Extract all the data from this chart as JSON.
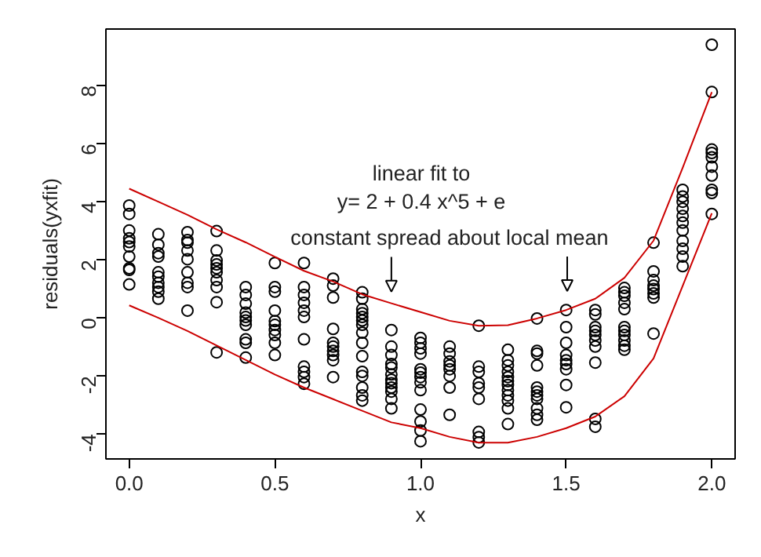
{
  "chart_data": {
    "type": "scatter",
    "xlabel": "x",
    "ylabel": "residuals(yxfit)",
    "xlim": [
      -0.08,
      2.08
    ],
    "ylim": [
      -4.86,
      9.95
    ],
    "xticks": [
      {
        "value": 0,
        "label": "0.0"
      },
      {
        "value": 0.5,
        "label": "0.5"
      },
      {
        "value": 1,
        "label": "1.0"
      },
      {
        "value": 1.5,
        "label": "1.5"
      },
      {
        "value": 2,
        "label": "2.0"
      }
    ],
    "yticks": [
      -4,
      -2,
      0,
      2,
      4,
      6,
      8
    ],
    "grid": false,
    "annotations": [
      "linear fit to",
      "y= 2 + 0.4 x^5 + e",
      {
        "text": "constant spread about local mean",
        "x": 0.9,
        "y": 0.5
      }
    ],
    "series": [
      {
        "marker": "circle",
        "color": "#000000",
        "x": [
          0,
          0,
          0,
          0,
          0,
          0,
          0,
          0,
          0,
          0,
          0.1,
          0.1,
          0.1,
          0.1,
          0.1,
          0.1,
          0.1,
          0.1,
          0.1,
          0.1,
          0.2,
          0.2,
          0.2,
          0.2,
          0.2,
          0.2,
          0.2,
          0.2,
          0.2,
          0.3,
          0.3,
          0.3,
          0.3,
          0.3,
          0.3,
          0.3,
          0.3,
          0.3,
          0.3,
          0.4,
          0.4,
          0.4,
          0.4,
          0.4,
          0.4,
          0.4,
          0.4,
          0.4,
          0.4,
          0.5,
          0.5,
          0.5,
          0.5,
          0.5,
          0.5,
          0.5,
          0.5,
          0.5,
          0.5,
          0.6,
          0.6,
          0.6,
          0.6,
          0.6,
          0.6,
          0.6,
          0.6,
          0.6,
          0.6,
          0.6,
          0.7,
          0.7,
          0.7,
          0.7,
          0.7,
          0.7,
          0.7,
          0.7,
          0.7,
          0.7,
          0.8,
          0.8,
          0.8,
          0.8,
          0.8,
          0.8,
          0.8,
          0.8,
          0.8,
          0.8,
          0.8,
          0.8,
          0.8,
          0.8,
          0.8,
          0.9,
          0.9,
          0.9,
          0.9,
          0.9,
          0.9,
          0.9,
          0.9,
          0.9,
          0.9,
          0.9,
          0.9,
          1.0,
          1.0,
          1.0,
          1.0,
          1.0,
          1.0,
          1.0,
          1.0,
          1.0,
          1.0,
          1.0,
          1.0,
          1.0,
          1.1,
          1.1,
          1.1,
          1.1,
          1.1,
          1.1,
          1.1,
          1.1,
          1.2,
          1.2,
          1.2,
          1.2,
          1.2,
          1.2,
          1.2,
          1.2,
          1.2,
          1.3,
          1.3,
          1.3,
          1.3,
          1.3,
          1.3,
          1.3,
          1.3,
          1.3,
          1.3,
          1.3,
          1.3,
          1.4,
          1.4,
          1.4,
          1.4,
          1.4,
          1.4,
          1.4,
          1.4,
          1.4,
          1.4,
          1.4,
          1.5,
          1.5,
          1.5,
          1.5,
          1.5,
          1.5,
          1.5,
          1.5,
          1.5,
          1.6,
          1.6,
          1.6,
          1.6,
          1.6,
          1.6,
          1.6,
          1.6,
          1.6,
          1.6,
          1.7,
          1.7,
          1.7,
          1.7,
          1.7,
          1.7,
          1.7,
          1.7,
          1.7,
          1.7,
          1.7,
          1.8,
          1.8,
          1.8,
          1.8,
          1.8,
          1.8,
          1.8,
          1.8,
          1.9,
          1.9,
          1.9,
          1.9,
          1.9,
          1.9,
          1.9,
          1.9,
          1.9,
          1.9,
          1.9,
          2.0,
          2.0,
          2.0,
          2.0,
          2.0,
          2.0,
          2.0,
          2.0,
          2.0,
          2.0
        ],
        "values": [
          3.87,
          3.58,
          3.01,
          2.74,
          2.61,
          2.46,
          2.11,
          1.71,
          1.65,
          1.15,
          2.88,
          2.52,
          2.23,
          2.11,
          1.57,
          1.42,
          1.21,
          1.06,
          0.9,
          0.66,
          2.95,
          2.68,
          2.59,
          2.32,
          2.02,
          1.57,
          1.21,
          1.06,
          0.25,
          2.99,
          2.32,
          1.98,
          1.84,
          1.71,
          1.57,
          1.3,
          1.06,
          0.54,
          -1.19,
          1.06,
          0.79,
          0.49,
          0.18,
          0.03,
          -0.09,
          -0.24,
          -0.74,
          -0.86,
          -1.37,
          1.89,
          1.06,
          0.9,
          0.25,
          -0.11,
          -0.24,
          -0.42,
          -0.59,
          -0.86,
          -1.28,
          1.89,
          1.06,
          0.79,
          0.52,
          0.25,
          0.03,
          -0.74,
          -1.68,
          -1.86,
          -2.04,
          -2.27,
          1.35,
          1.11,
          0.7,
          -0.38,
          -0.86,
          -0.99,
          -1.14,
          -1.28,
          -1.46,
          -2.04,
          0.88,
          0.66,
          0.3,
          0.16,
          0.03,
          -0.09,
          -0.24,
          -0.51,
          -0.86,
          -1.32,
          -1.86,
          -2.0,
          -2.4,
          -2.67,
          -2.85,
          -0.42,
          -0.99,
          -1.28,
          -1.59,
          -1.71,
          -1.95,
          -2.13,
          -2.25,
          -2.4,
          -2.54,
          -2.79,
          -3.12,
          -0.69,
          -0.86,
          -1.05,
          -1.23,
          -1.77,
          -1.89,
          -2.04,
          -2.22,
          -2.49,
          -3.16,
          -3.57,
          -3.88,
          -4.25,
          -0.99,
          -1.23,
          -1.5,
          -1.64,
          -1.77,
          -2.0,
          -2.4,
          -3.34,
          -0.27,
          -1.68,
          -1.86,
          -2.25,
          -2.4,
          -2.79,
          -3.93,
          -4.11,
          -4.29,
          -1.1,
          -1.46,
          -1.64,
          -1.86,
          -2.04,
          -2.18,
          -2.31,
          -2.49,
          -2.67,
          -2.85,
          -3.12,
          -3.66,
          -0.02,
          -1.14,
          -1.23,
          -1.64,
          -2.4,
          -2.54,
          -2.67,
          -2.79,
          -3.12,
          -3.34,
          -3.51,
          0.27,
          -0.32,
          -0.86,
          -1.28,
          -1.46,
          -1.59,
          -1.77,
          -2.31,
          -3.08,
          0.27,
          0.12,
          -0.32,
          -0.45,
          -0.59,
          -0.78,
          -0.99,
          -1.54,
          -3.48,
          -3.75,
          1.03,
          0.88,
          0.76,
          0.52,
          0.3,
          -0.32,
          -0.45,
          -0.59,
          -0.78,
          -0.96,
          -1.1,
          2.59,
          1.6,
          1.3,
          1.11,
          0.99,
          0.84,
          0.7,
          -0.54,
          4.41,
          4.18,
          4.0,
          3.76,
          3.51,
          3.28,
          3.01,
          2.65,
          2.38,
          2.11,
          1.78,
          9.41,
          7.78,
          5.8,
          5.68,
          5.53,
          5.21,
          4.9,
          4.41,
          4.3,
          3.58
        ]
      },
      {
        "type": "line",
        "marker": "none",
        "color": "#cc0000",
        "x": [
          0,
          0.1,
          0.2,
          0.3,
          0.4,
          0.5,
          0.6,
          0.7,
          0.8,
          0.9,
          1.0,
          1.1,
          1.2,
          1.3,
          1.4,
          1.5,
          1.6,
          1.7,
          1.8,
          1.9,
          2.0
        ],
        "values": [
          4.45,
          4.0,
          3.55,
          3.05,
          2.6,
          2.1,
          1.62,
          1.25,
          0.81,
          0.5,
          0.2,
          -0.1,
          -0.27,
          -0.25,
          -0.02,
          0.27,
          0.66,
          1.38,
          2.66,
          5.17,
          7.78
        ]
      },
      {
        "type": "line",
        "marker": "none",
        "color": "#cc0000",
        "x": [
          0,
          0.1,
          0.2,
          0.3,
          0.4,
          0.5,
          0.6,
          0.7,
          0.8,
          0.9,
          1.0,
          1.1,
          1.2,
          1.3,
          1.4,
          1.5,
          1.6,
          1.7,
          1.8,
          1.9,
          2.0
        ],
        "values": [
          0.43,
          0.0,
          -0.45,
          -0.95,
          -1.45,
          -1.95,
          -2.4,
          -2.8,
          -3.2,
          -3.6,
          -3.8,
          -4.1,
          -4.3,
          -4.3,
          -4.1,
          -3.8,
          -3.4,
          -2.7,
          -1.4,
          1.1,
          3.6
        ]
      }
    ]
  }
}
